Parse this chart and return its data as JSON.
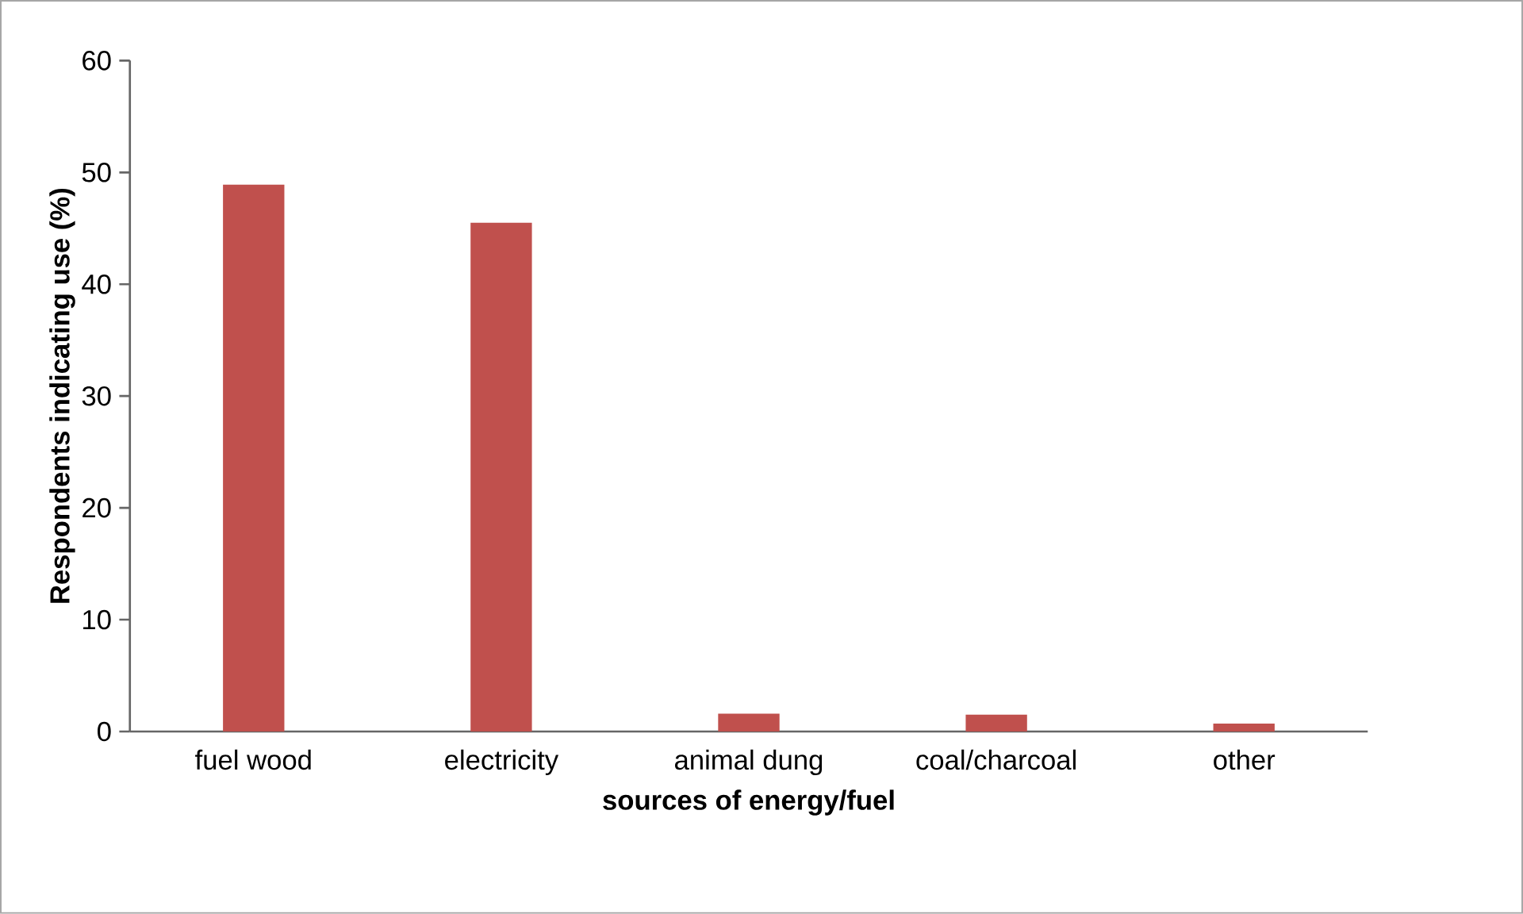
{
  "chart_data": {
    "type": "bar",
    "xlabel": "sources of energy/fuel",
    "ylabel": "Respondents indicating use (%)",
    "categories": [
      "fuel wood",
      "electricity",
      "animal dung",
      "coal/charcoal",
      "other"
    ],
    "values": [
      48.9,
      45.5,
      1.6,
      1.5,
      0.7
    ],
    "color": "#c0504d",
    "ylim": [
      0,
      60
    ],
    "yticks": [
      0,
      10,
      20,
      30,
      40,
      50,
      60
    ],
    "grid": false
  }
}
